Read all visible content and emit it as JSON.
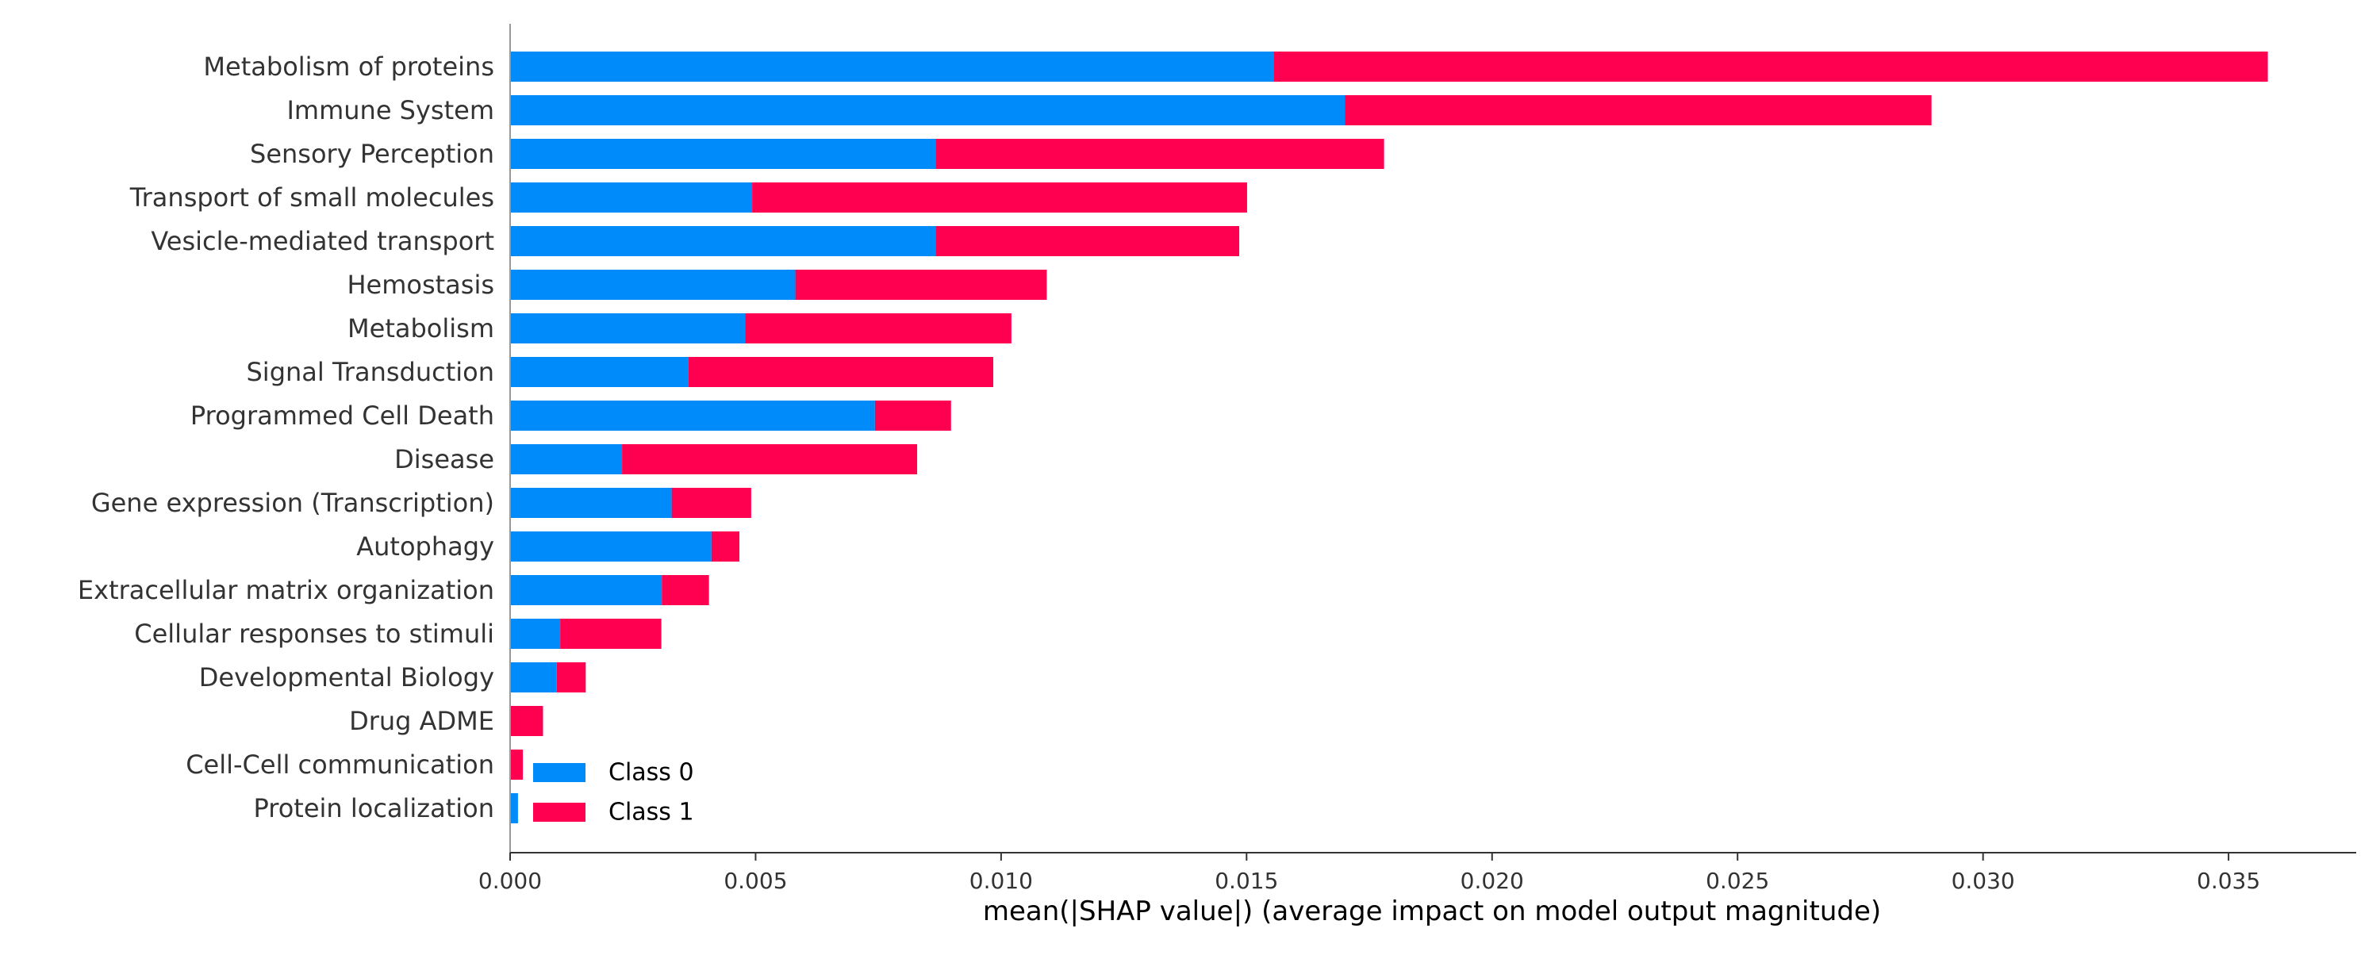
{
  "chart_data": {
    "type": "bar",
    "orientation": "horizontal",
    "stacked": true,
    "title": "",
    "xlabel": "mean(|SHAP value|) (average impact on model output magnitude)",
    "ylabel": "",
    "xlim": [
      0,
      0.0376
    ],
    "xticks": [
      0.0,
      0.005,
      0.01,
      0.015,
      0.02,
      0.025,
      0.03,
      0.035
    ],
    "xtick_labels": [
      "0.000",
      "0.005",
      "0.010",
      "0.015",
      "0.020",
      "0.025",
      "0.030",
      "0.035"
    ],
    "grid": false,
    "legend_position": "bottom-left",
    "categories": [
      "Metabolism of proteins",
      "Immune System",
      "Sensory Perception",
      "Transport of small molecules",
      "Vesicle-mediated transport",
      "Hemostasis",
      "Metabolism",
      "Signal Transduction",
      "Programmed Cell Death",
      "Disease",
      "Gene expression (Transcription)",
      "Autophagy",
      "Extracellular matrix organization",
      "Cellular responses to stimuli",
      "Developmental Biology",
      "Drug ADME",
      "Cell-Cell communication",
      "Protein localization"
    ],
    "series": [
      {
        "name": "Class 0",
        "color": "#008bfb",
        "values": [
          0.01555,
          0.017,
          0.00867,
          0.00493,
          0.00867,
          0.00581,
          0.00479,
          0.00363,
          0.00743,
          0.00228,
          0.00329,
          0.0041,
          0.00309,
          0.00102,
          0.00095,
          0.0,
          0.0,
          0.00016
        ]
      },
      {
        "name": "Class 1",
        "color": "#ff0051",
        "values": [
          0.02025,
          0.01195,
          0.00913,
          0.01008,
          0.00618,
          0.00512,
          0.00542,
          0.00621,
          0.00155,
          0.00601,
          0.00162,
          0.00057,
          0.00096,
          0.00206,
          0.00059,
          0.00067,
          0.00026,
          0.0
        ]
      }
    ]
  }
}
